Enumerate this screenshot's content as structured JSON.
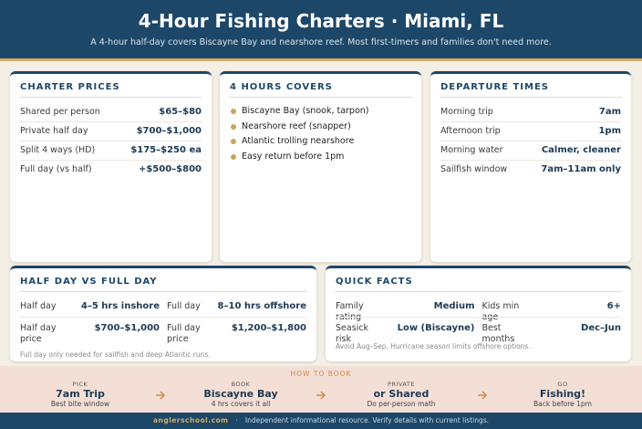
{
  "header": {
    "title": "4-Hour Fishing Charters · Miami, FL",
    "subtitle": "A 4-hour half-day covers Biscayne Bay and nearshore reef. Most first-timers and families don't need more."
  },
  "charter_prices": {
    "title": "CHARTER PRICES",
    "rows": [
      [
        "Shared per person",
        "$65–$80"
      ],
      [
        "Private half day",
        "$700–$1,000"
      ],
      [
        "Split 4 ways (HD)",
        "$175–$250 ea"
      ],
      [
        "Full day (vs half)",
        "+$500–$800"
      ]
    ]
  },
  "covers": {
    "title": "4 HOURS COVERS",
    "items": [
      "Biscayne Bay (snook, tarpon)",
      "Nearshore reef (snapper)",
      "Atlantic trolling nearshore",
      "Easy return before 1pm"
    ]
  },
  "departure": {
    "title": "DEPARTURE TIMES",
    "rows": [
      [
        "Morning trip",
        "7am"
      ],
      [
        "Afternoon trip",
        "1pm"
      ],
      [
        "Morning water",
        "Calmer, cleaner"
      ],
      [
        "Sailfish window",
        "7am–11am only"
      ]
    ]
  },
  "half_vs_full": {
    "title": "HALF DAY VS FULL DAY",
    "rows": [
      [
        "Half day",
        "4–5 hrs inshore",
        "Full day",
        "8–10 hrs offshore"
      ],
      [
        "Half day price",
        "$700–$1,000",
        "Full day price",
        "$1,200–$1,800"
      ]
    ],
    "note": "Full day only needed for sailfish and deep Atlantic runs."
  },
  "quick_facts": {
    "title": "QUICK FACTS",
    "rows": [
      [
        "Family rating",
        "Medium",
        "Kids min age",
        "6+"
      ],
      [
        "Seasick risk",
        "Low (Biscayne)",
        "Best months",
        "Dec–Jun"
      ]
    ],
    "note": "Avoid Aug–Sep. Hurricane season limits offshore options."
  },
  "how_to_book": {
    "title": "HOW TO BOOK",
    "steps": [
      {
        "label": "PICK",
        "main": "7am Trip",
        "sub": "Best bite window"
      },
      {
        "label": "BOOK",
        "main": "Biscayne Bay",
        "sub": "4 hrs covers it all"
      },
      {
        "label": "PRIVATE",
        "main": "or Shared",
        "sub": "Do per-person math"
      },
      {
        "label": "GO",
        "main": "Fishing!",
        "sub": "Back before 1pm"
      }
    ]
  },
  "footer": {
    "site": "anglerschool.com",
    "separator": "·",
    "text": "Independent informational resource. Verify details with current listings."
  }
}
